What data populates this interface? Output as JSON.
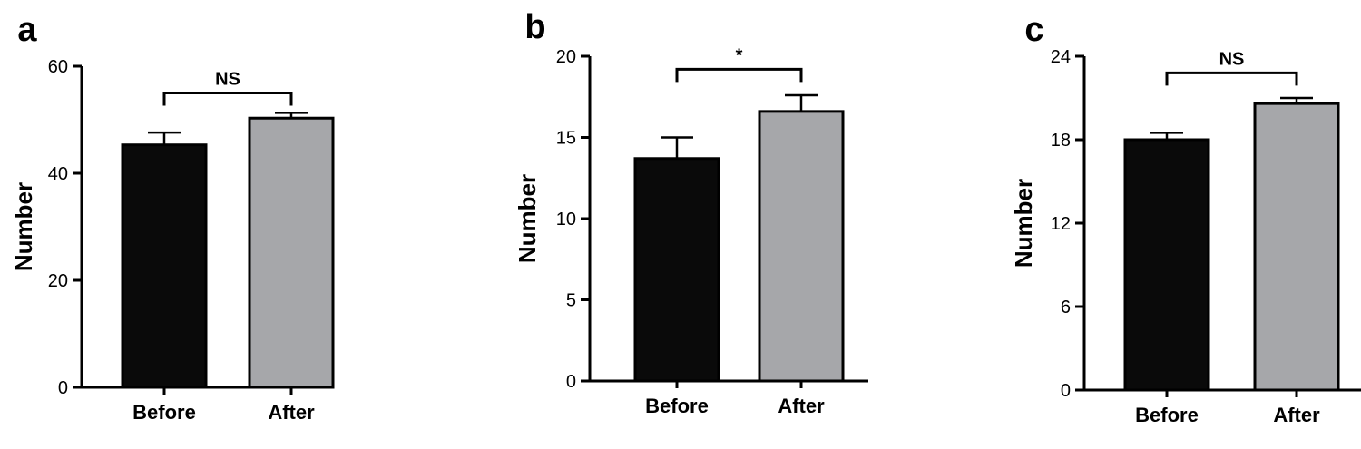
{
  "colors": {
    "before_bar": "#0a0a0a",
    "after_bar": "#a6a7aa",
    "axis": "#000000"
  },
  "chart_data": [
    {
      "type": "bar",
      "panel_label": "a",
      "categories": [
        "Before",
        "After"
      ],
      "values": [
        45.3,
        50.3
      ],
      "errors": [
        2.3,
        1.0
      ],
      "ylabel": "Number",
      "ylim": [
        0,
        60
      ],
      "yticks": [
        0,
        20,
        40,
        60
      ],
      "significance": "NS",
      "significance_bracket_at": 55,
      "grid": false
    },
    {
      "type": "bar",
      "panel_label": "b",
      "categories": [
        "Before",
        "After"
      ],
      "values": [
        13.7,
        16.6
      ],
      "errors": [
        1.3,
        1.0
      ],
      "ylabel": "Number",
      "ylim": [
        0,
        20
      ],
      "yticks": [
        0,
        5,
        10,
        15,
        20
      ],
      "significance": "*",
      "significance_bracket_at": 19.2,
      "grid": false
    },
    {
      "type": "bar",
      "panel_label": "c",
      "categories": [
        "Before",
        "After"
      ],
      "values": [
        18.0,
        20.6
      ],
      "errors": [
        0.5,
        0.4
      ],
      "ylabel": "Number",
      "ylim": [
        0,
        24
      ],
      "yticks": [
        0,
        6,
        12,
        18,
        24
      ],
      "significance": "NS",
      "significance_bracket_at": 22.8,
      "grid": false
    }
  ]
}
